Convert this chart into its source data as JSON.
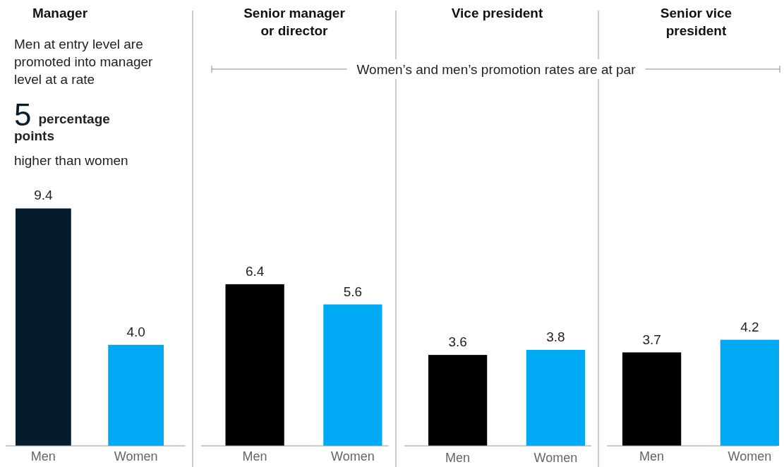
{
  "chart_data": [
    {
      "type": "bar",
      "title": "Manager",
      "categories": [
        "Men",
        "Women"
      ],
      "values": [
        9.4,
        4.0
      ],
      "value_labels": [
        "9.4",
        "4.0"
      ],
      "colors": [
        "#051c2c",
        "#00a9f4"
      ],
      "annotations": [
        "Men at entry level are promoted into manager level at a rate",
        "5",
        "percentage points",
        "higher than women"
      ]
    },
    {
      "type": "bar",
      "title": "Senior manager or director",
      "categories": [
        "Men",
        "Women"
      ],
      "values": [
        6.4,
        5.6
      ],
      "colors": [
        "#000000",
        "#00a9f4"
      ],
      "data_labels": true
    },
    {
      "type": "bar",
      "title": "Vice president",
      "categories": [
        "Men",
        "Women"
      ],
      "values": [
        3.6,
        3.8
      ],
      "colors": [
        "#000000",
        "#00a9f4"
      ],
      "data_labels": true,
      "annotations": [
        "Women’s and men’s promotion rates are at par"
      ]
    },
    {
      "type": "bar",
      "title": "Senior vice president",
      "categories": [
        "Men",
        "Women"
      ],
      "values": [
        3.7,
        4.2
      ],
      "colors": [
        "#000000",
        "#00a9f4"
      ],
      "data_labels": true
    }
  ]
}
